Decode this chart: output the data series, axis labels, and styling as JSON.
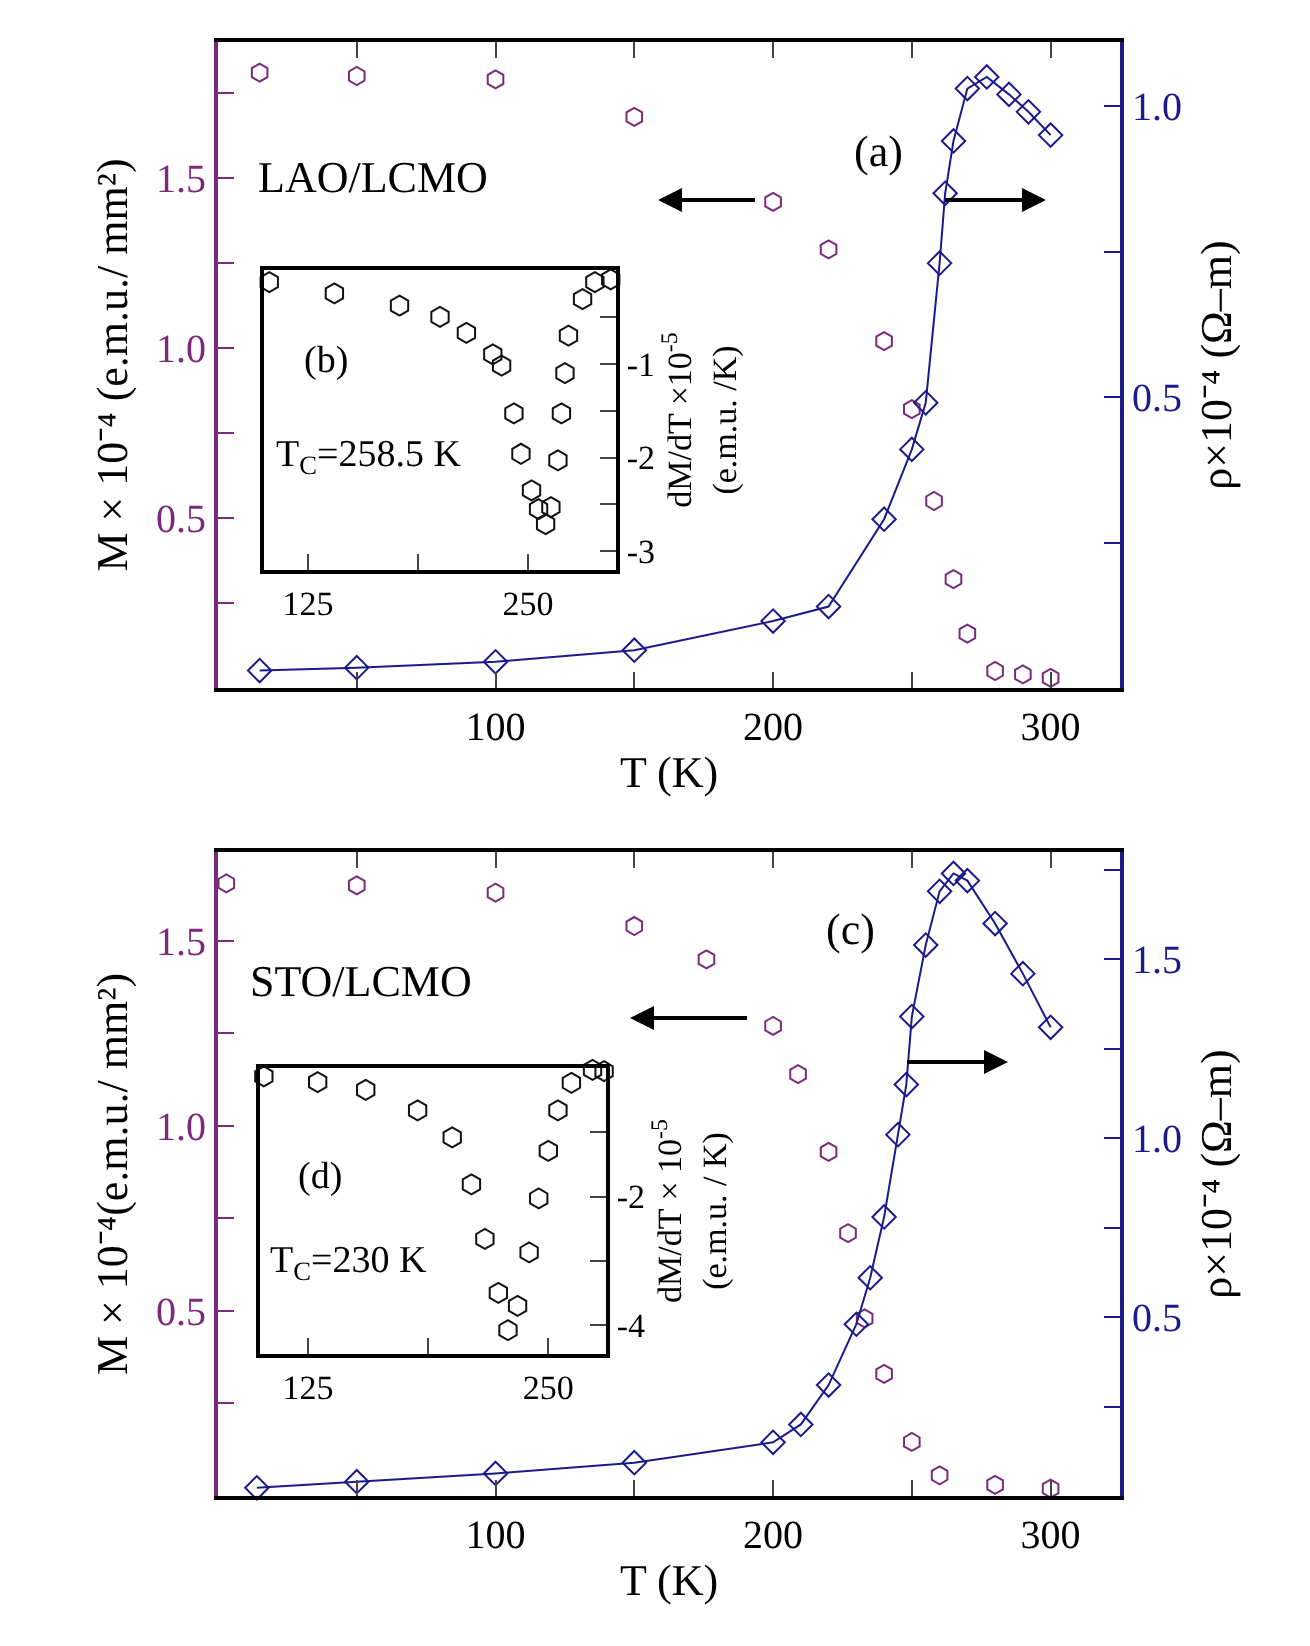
{
  "chart_data": [
    {
      "type": "scatter",
      "xlabel": "T (K)",
      "ylabel": "M × 10⁻⁴ (e.m.u./ mm²)",
      "y2label": "ρ×10⁻⁴ (Ω–m)",
      "annotations": [
        "LAO/LCMO",
        "(a)"
      ],
      "xlim": [
        0,
        325
      ],
      "xticks": [
        {
          "value": 50,
          "label": null
        },
        100,
        {
          "value": 150,
          "label": null
        },
        200,
        {
          "value": 250,
          "label": null
        },
        300
      ],
      "ylim": [
        0,
        1.9
      ],
      "yticks": [
        {
          "value": 0.25,
          "label": null
        },
        0.5,
        {
          "value": 0.75,
          "label": null
        },
        {
          "value": 1,
          "label": "1.0"
        },
        {
          "value": 1.25,
          "label": null
        },
        1.5,
        {
          "value": 1.75,
          "label": null
        }
      ],
      "y2lim": [
        0,
        1.11
      ],
      "y2ticks": [
        {
          "value": 0.25,
          "label": null
        },
        {
          "value": 0.5,
          "label": "0.5"
        },
        {
          "value": 0.75,
          "label": null
        },
        {
          "value": 1,
          "label": "1.0"
        }
      ],
      "grid": false,
      "legend": false,
      "series": [
        {
          "type": "scatter",
          "marker": "circle",
          "color": "#7b2a7b",
          "x": [
            15,
            50,
            100,
            150,
            200,
            220,
            240,
            250,
            258,
            265,
            270,
            280,
            290,
            300
          ],
          "values": [
            1.81,
            1.8,
            1.79,
            1.68,
            1.43,
            1.29,
            1.02,
            0.82,
            0.55,
            0.32,
            0.16,
            0.05,
            0.04,
            0.03
          ]
        },
        {
          "type": "line",
          "marker": "diamond",
          "axis": "y2",
          "color": "#1a1a8c",
          "x": [
            15,
            50,
            100,
            150,
            200,
            220,
            240,
            250,
            255,
            260,
            262,
            265,
            270,
            277,
            285,
            292,
            300
          ],
          "values": [
            0.03,
            0.035,
            0.045,
            0.065,
            0.115,
            0.14,
            0.29,
            0.41,
            0.49,
            0.73,
            0.85,
            0.94,
            1.03,
            1.05,
            1.02,
            0.99,
            0.95
          ]
        }
      ]
    },
    {
      "type": "scatter",
      "ylabel": "dM/dT ×10$^{-5}$\n(e.m.u. /K)",
      "annotations": [
        "(b)",
        "T$_{C}$=258.5 K"
      ],
      "xlim": [
        100,
        300
      ],
      "xticks": [
        125,
        {
          "value": 187.5,
          "label": null
        },
        250
      ],
      "ylim": [
        -3.2,
        0
      ],
      "yticks": [
        {
          "value": -0.5,
          "label": null
        },
        -1,
        {
          "value": -1.5,
          "label": null
        },
        -2,
        {
          "value": -2.5,
          "label": null
        },
        -3
      ],
      "grid": false,
      "legend": false,
      "series": [
        {
          "type": "scatter",
          "marker": "circle",
          "color": "#111111",
          "x": [
            103,
            140,
            177,
            200,
            215,
            230,
            235,
            242,
            246,
            252,
            256,
            260,
            263,
            267,
            269,
            271,
            273,
            281,
            288,
            297
          ],
          "values": [
            -0.13,
            -0.25,
            -0.38,
            -0.5,
            -0.67,
            -0.9,
            -1.02,
            -1.53,
            -1.96,
            -2.35,
            -2.55,
            -2.71,
            -2.53,
            -2.03,
            -1.53,
            -1.1,
            -0.7,
            -0.31,
            -0.13,
            -0.1
          ]
        }
      ]
    },
    {
      "type": "scatter",
      "xlabel": "T (K)",
      "ylabel": "M × 10⁻⁴(e.m.u./ mm²)",
      "y2label": "ρ×10⁻⁴ (Ω–m)",
      "annotations": [
        "STO/LCMO",
        "(c)"
      ],
      "xlim": [
        0,
        325
      ],
      "xticks": [
        {
          "value": 50,
          "label": null
        },
        100,
        {
          "value": 150,
          "label": null
        },
        200,
        {
          "value": 250,
          "label": null
        },
        300
      ],
      "ylim": [
        0,
        1.74
      ],
      "yticks": [
        {
          "value": 0.25,
          "label": null
        },
        0.5,
        {
          "value": 0.75,
          "label": null
        },
        {
          "value": 1,
          "label": "1.0"
        },
        {
          "value": 1.25,
          "label": null
        },
        1.5
      ],
      "y2lim": [
        0,
        1.8
      ],
      "y2ticks": [
        {
          "value": 0.25,
          "label": null
        },
        {
          "value": 0.5,
          "label": "0.5"
        },
        {
          "value": 0.75,
          "label": null
        },
        {
          "value": 1,
          "label": "1.0"
        },
        {
          "value": 1.25,
          "label": null
        },
        {
          "value": 1.5,
          "label": "1.5"
        },
        {
          "value": 1.75,
          "label": null
        }
      ],
      "grid": false,
      "legend": false,
      "series": [
        {
          "type": "scatter",
          "marker": "circle",
          "color": "#7b2a7b",
          "x": [
            3,
            50,
            100,
            150,
            176,
            200,
            209,
            220,
            227,
            233,
            240,
            250,
            260,
            280,
            300
          ],
          "values": [
            1.655,
            1.65,
            1.63,
            1.54,
            1.45,
            1.27,
            1.14,
            0.93,
            0.71,
            0.48,
            0.33,
            0.146,
            0.056,
            0.03,
            0.02
          ]
        },
        {
          "type": "line",
          "marker": "diamond",
          "axis": "y2",
          "color": "#1a1a8c",
          "x": [
            14,
            50,
            100,
            150,
            200,
            210,
            220,
            230,
            235,
            240,
            245,
            248,
            250,
            255,
            260,
            265,
            270,
            280,
            290,
            300
          ],
          "values": [
            0.023,
            0.04,
            0.063,
            0.093,
            0.15,
            0.2,
            0.31,
            0.48,
            0.61,
            0.78,
            1.01,
            1.15,
            1.34,
            1.54,
            1.69,
            1.74,
            1.72,
            1.6,
            1.46,
            1.31
          ]
        }
      ]
    },
    {
      "type": "scatter",
      "ylabel": "dM/dT × 10$^{-5}$\n(e.m.u. / K)",
      "annotations": [
        "(d)",
        "T$_{C}$=230 K"
      ],
      "xlim": [
        100,
        280
      ],
      "xticks": [
        125,
        {
          "value": 187.5,
          "label": null
        },
        250
      ],
      "ylim": [
        -4.45,
        0
      ],
      "yticks": [
        {
          "value": -1,
          "label": null
        },
        -2,
        {
          "value": -3,
          "label": null
        },
        -4
      ],
      "grid": false,
      "legend": false,
      "series": [
        {
          "type": "scatter",
          "marker": "circle",
          "color": "#111111",
          "x": [
            102,
            130,
            155,
            182,
            200,
            210,
            217,
            224,
            229,
            234,
            240,
            245,
            250,
            255,
            262,
            273,
            279
          ],
          "values": [
            -0.13,
            -0.22,
            -0.34,
            -0.66,
            -1.08,
            -1.81,
            -2.66,
            -3.5,
            -4.08,
            -3.7,
            -2.87,
            -2.03,
            -1.29,
            -0.66,
            -0.23,
            -0.03,
            -0.05
          ]
        }
      ]
    }
  ]
}
